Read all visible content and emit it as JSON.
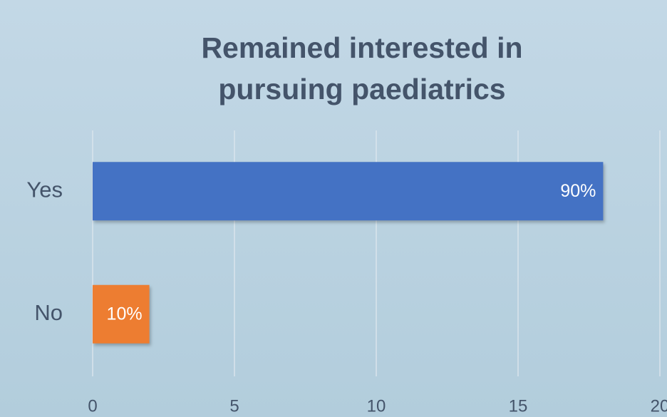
{
  "chart_data": {
    "type": "barh",
    "title": "Remained interested in pursuing paediatrics",
    "categories": [
      "Yes",
      "No"
    ],
    "values": [
      18,
      2
    ],
    "value_labels": [
      "90%",
      "10%"
    ],
    "colors": [
      "#4472c4",
      "#ed7d31"
    ],
    "xlim": [
      0,
      20
    ],
    "xticks": [
      0,
      5,
      10,
      15,
      20
    ],
    "grid": true
  }
}
